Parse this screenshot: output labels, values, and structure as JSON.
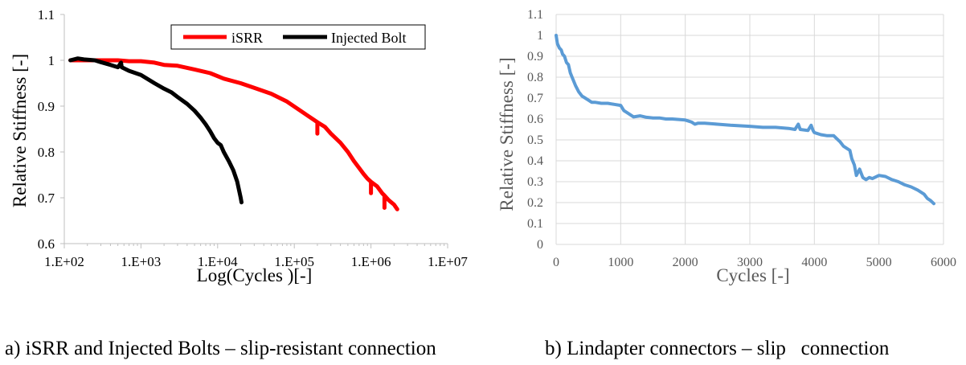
{
  "figure": {
    "caption_a": "a) iSRR and Injected Bolts – slip-resistant connection",
    "caption_b": "b) Lindapter connectors – slip   connection"
  },
  "chart_data": [
    {
      "type": "line",
      "xlabel": "Log(Cycles )[-]",
      "ylabel": "Relative Stiffness [-]",
      "x_scale": "log",
      "xlim": [
        100,
        10000000
      ],
      "ylim": [
        0.6,
        1.1
      ],
      "x_tick_labels": [
        "1.E+02",
        "1.E+03",
        "1.E+04",
        "1.E+05",
        "1.E+06",
        "1.E+07"
      ],
      "y_tick_labels": [
        "0.6",
        "0.7",
        "0.8",
        "0.9",
        "1",
        "1.1"
      ],
      "grid": false,
      "legend": {
        "position": "top-right",
        "border": true
      },
      "series": [
        {
          "name": "iSRR",
          "color": "#ff0000",
          "points": [
            [
              120,
              1.0
            ],
            [
              200,
              1.0
            ],
            [
              300,
              1.0
            ],
            [
              500,
              1.0
            ],
            [
              700,
              0.998
            ],
            [
              1000,
              0.998
            ],
            [
              1500,
              0.995
            ],
            [
              2000,
              0.99
            ],
            [
              3000,
              0.988
            ],
            [
              5000,
              0.98
            ],
            [
              8000,
              0.972
            ],
            [
              12000,
              0.96
            ],
            [
              20000,
              0.95
            ],
            [
              30000,
              0.94
            ],
            [
              50000,
              0.927
            ],
            [
              80000,
              0.91
            ],
            [
              120000,
              0.89
            ],
            [
              180000,
              0.87
            ],
            [
              200000,
              0.865
            ],
            [
              200000,
              0.84
            ],
            [
              200000,
              0.865
            ],
            [
              250000,
              0.855
            ],
            [
              300000,
              0.84
            ],
            [
              400000,
              0.82
            ],
            [
              500000,
              0.8
            ],
            [
              600000,
              0.78
            ],
            [
              700000,
              0.765
            ],
            [
              800000,
              0.752
            ],
            [
              900000,
              0.742
            ],
            [
              1000000,
              0.735
            ],
            [
              1000000,
              0.71
            ],
            [
              1000000,
              0.735
            ],
            [
              1200000,
              0.725
            ],
            [
              1400000,
              0.71
            ],
            [
              1500000,
              0.705
            ],
            [
              1500000,
              0.678
            ],
            [
              1500000,
              0.705
            ],
            [
              1700000,
              0.695
            ],
            [
              2000000,
              0.685
            ],
            [
              2200000,
              0.675
            ]
          ]
        },
        {
          "name": "Injected Bolt",
          "color": "#000000",
          "points": [
            [
              120,
              1.0
            ],
            [
              150,
              1.004
            ],
            [
              180,
              1.002
            ],
            [
              250,
              1.0
            ],
            [
              300,
              0.996
            ],
            [
              400,
              0.99
            ],
            [
              500,
              0.985
            ],
            [
              550,
              0.995
            ],
            [
              560,
              0.985
            ],
            [
              700,
              0.977
            ],
            [
              1000,
              0.968
            ],
            [
              1500,
              0.95
            ],
            [
              2000,
              0.938
            ],
            [
              2500,
              0.93
            ],
            [
              3000,
              0.92
            ],
            [
              4000,
              0.905
            ],
            [
              5000,
              0.89
            ],
            [
              6000,
              0.875
            ],
            [
              7000,
              0.86
            ],
            [
              8000,
              0.845
            ],
            [
              9000,
              0.83
            ],
            [
              10000,
              0.82
            ],
            [
              11000,
              0.815
            ],
            [
              12000,
              0.8
            ],
            [
              14000,
              0.78
            ],
            [
              16000,
              0.76
            ],
            [
              18000,
              0.735
            ],
            [
              20000,
              0.7
            ],
            [
              20500,
              0.69
            ]
          ]
        }
      ]
    },
    {
      "type": "line",
      "xlabel": "Cycles [-]",
      "ylabel": "Relative Stiffness [-]",
      "xlim": [
        0,
        6000
      ],
      "ylim": [
        0,
        1.1
      ],
      "x_tick_labels": [
        "0",
        "1000",
        "2000",
        "3000",
        "4000",
        "5000",
        "6000"
      ],
      "y_tick_labels": [
        "0",
        "0.1",
        "0.2",
        "0.3",
        "0.4",
        "0.5",
        "0.6",
        "0.7",
        "0.8",
        "0.9",
        "1",
        "1.1"
      ],
      "grid": true,
      "legend": null,
      "series": [
        {
          "color": "#5b9bd5",
          "points": [
            [
              0,
              1.0
            ],
            [
              20,
              0.96
            ],
            [
              50,
              0.94
            ],
            [
              80,
              0.93
            ],
            [
              100,
              0.91
            ],
            [
              130,
              0.9
            ],
            [
              160,
              0.87
            ],
            [
              190,
              0.86
            ],
            [
              220,
              0.82
            ],
            [
              260,
              0.79
            ],
            [
              300,
              0.76
            ],
            [
              350,
              0.73
            ],
            [
              400,
              0.71
            ],
            [
              450,
              0.7
            ],
            [
              500,
              0.69
            ],
            [
              550,
              0.68
            ],
            [
              600,
              0.68
            ],
            [
              700,
              0.675
            ],
            [
              800,
              0.675
            ],
            [
              900,
              0.67
            ],
            [
              1000,
              0.665
            ],
            [
              1050,
              0.64
            ],
            [
              1100,
              0.63
            ],
            [
              1150,
              0.62
            ],
            [
              1200,
              0.61
            ],
            [
              1300,
              0.615
            ],
            [
              1400,
              0.608
            ],
            [
              1500,
              0.605
            ],
            [
              1600,
              0.605
            ],
            [
              1700,
              0.6
            ],
            [
              1800,
              0.6
            ],
            [
              2000,
              0.595
            ],
            [
              2100,
              0.585
            ],
            [
              2150,
              0.575
            ],
            [
              2200,
              0.58
            ],
            [
              2300,
              0.58
            ],
            [
              2500,
              0.575
            ],
            [
              2700,
              0.57
            ],
            [
              3000,
              0.565
            ],
            [
              3200,
              0.56
            ],
            [
              3400,
              0.56
            ],
            [
              3600,
              0.555
            ],
            [
              3700,
              0.55
            ],
            [
              3750,
              0.575
            ],
            [
              3780,
              0.55
            ],
            [
              3900,
              0.545
            ],
            [
              3950,
              0.57
            ],
            [
              3980,
              0.545
            ],
            [
              4000,
              0.535
            ],
            [
              4100,
              0.525
            ],
            [
              4200,
              0.52
            ],
            [
              4300,
              0.52
            ],
            [
              4350,
              0.505
            ],
            [
              4400,
              0.49
            ],
            [
              4450,
              0.47
            ],
            [
              4500,
              0.46
            ],
            [
              4550,
              0.45
            ],
            [
              4580,
              0.41
            ],
            [
              4620,
              0.38
            ],
            [
              4650,
              0.33
            ],
            [
              4700,
              0.36
            ],
            [
              4750,
              0.32
            ],
            [
              4800,
              0.31
            ],
            [
              4850,
              0.32
            ],
            [
              4900,
              0.315
            ],
            [
              5000,
              0.33
            ],
            [
              5100,
              0.325
            ],
            [
              5200,
              0.31
            ],
            [
              5300,
              0.3
            ],
            [
              5400,
              0.285
            ],
            [
              5500,
              0.275
            ],
            [
              5600,
              0.26
            ],
            [
              5700,
              0.24
            ],
            [
              5750,
              0.22
            ],
            [
              5800,
              0.21
            ],
            [
              5850,
              0.195
            ]
          ]
        }
      ]
    }
  ]
}
